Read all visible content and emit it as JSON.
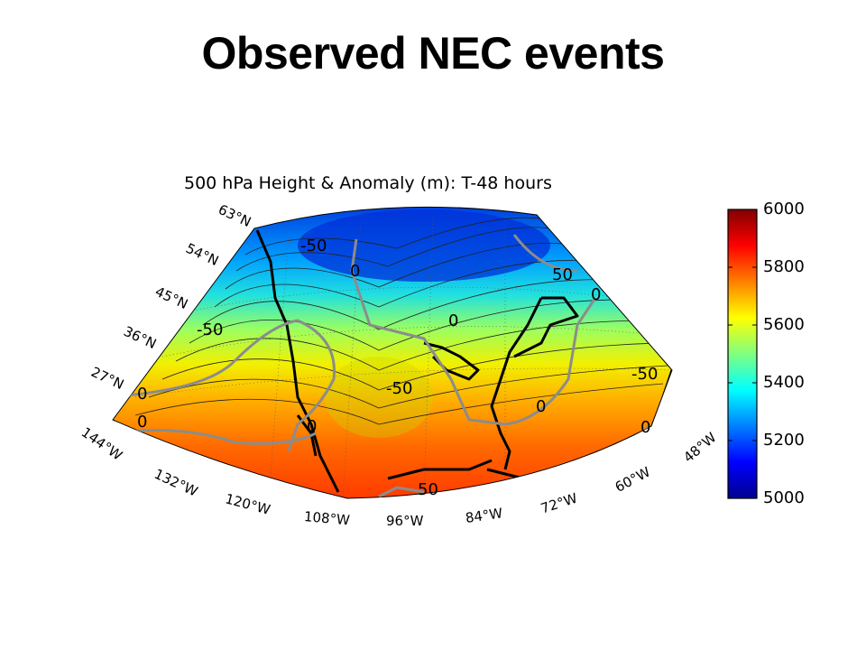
{
  "slide": {
    "title": "Observed NEC events"
  },
  "map": {
    "title": "500 hPa Height & Anomaly (m): T-48 hours",
    "colorbar": {
      "min": 5000,
      "max": 6000,
      "ticks": [
        "6000",
        "5800",
        "5600",
        "5400",
        "5200",
        "5000"
      ],
      "colormap": "jet"
    },
    "lon_labels": [
      "144°W",
      "132°W",
      "120°W",
      "108°W",
      "96°W",
      "84°W",
      "72°W",
      "60°W",
      "48°W"
    ],
    "lat_labels": [
      "63°N",
      "54°N",
      "45°N",
      "36°N",
      "27°N"
    ],
    "anomaly_labels": [
      "-50",
      "0",
      "-50",
      "-50",
      "0",
      "0",
      "0",
      "50",
      "0",
      "-50",
      "0",
      "0",
      "50",
      "0",
      "0"
    ],
    "colors": {
      "anomaly_contour": "#8c8c8c",
      "coastline": "#000000",
      "height_contour": "#222222"
    }
  }
}
